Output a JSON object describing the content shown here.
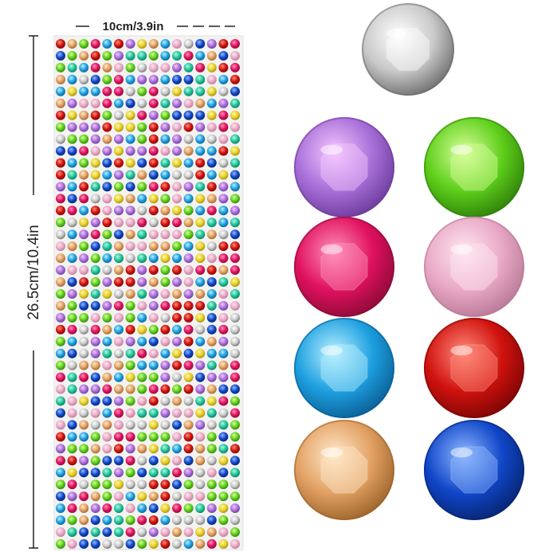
{
  "labels": {
    "width": "10cm/3.9in",
    "height": "26.5cm/10.4in"
  }
}
